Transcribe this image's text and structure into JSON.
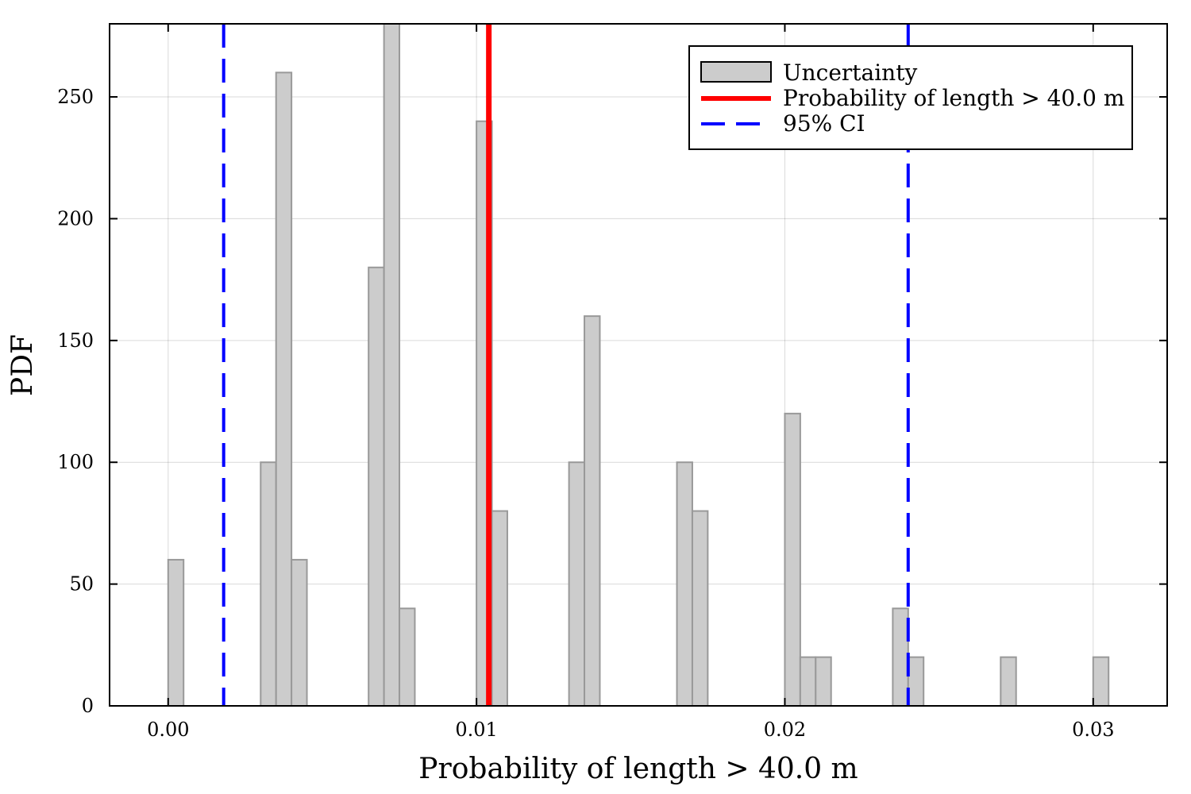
{
  "chart_data": {
    "type": "bar",
    "subtype": "histogram",
    "xlabel": "Probability of length > 40.0 m",
    "ylabel": "PDF",
    "xlim": [
      -0.0019,
      0.0324
    ],
    "ylim": [
      0,
      280
    ],
    "grid": true,
    "legend_position": "top-right",
    "bin_width": 0.0005,
    "x_ticks": [
      {
        "value": 0.0,
        "label": "0.00"
      },
      {
        "value": 0.01,
        "label": "0.01"
      },
      {
        "value": 0.02,
        "label": "0.02"
      },
      {
        "value": 0.03,
        "label": "0.03"
      }
    ],
    "y_ticks": [
      {
        "value": 0,
        "label": "0"
      },
      {
        "value": 50,
        "label": "50"
      },
      {
        "value": 100,
        "label": "100"
      },
      {
        "value": 150,
        "label": "150"
      },
      {
        "value": 200,
        "label": "200"
      },
      {
        "value": 250,
        "label": "250"
      }
    ],
    "bars": [
      {
        "x0": 0.0,
        "x1": 0.0005,
        "value": 60
      },
      {
        "x0": 0.003,
        "x1": 0.0035,
        "value": 100
      },
      {
        "x0": 0.0035,
        "x1": 0.004,
        "value": 260
      },
      {
        "x0": 0.004,
        "x1": 0.0045,
        "value": 60
      },
      {
        "x0": 0.0065,
        "x1": 0.007,
        "value": 180
      },
      {
        "x0": 0.007,
        "x1": 0.0075,
        "value": 280
      },
      {
        "x0": 0.0075,
        "x1": 0.008,
        "value": 40
      },
      {
        "x0": 0.01,
        "x1": 0.0105,
        "value": 240
      },
      {
        "x0": 0.0105,
        "x1": 0.011,
        "value": 80
      },
      {
        "x0": 0.013,
        "x1": 0.0135,
        "value": 100
      },
      {
        "x0": 0.0135,
        "x1": 0.014,
        "value": 160
      },
      {
        "x0": 0.0165,
        "x1": 0.017,
        "value": 100
      },
      {
        "x0": 0.017,
        "x1": 0.0175,
        "value": 80
      },
      {
        "x0": 0.02,
        "x1": 0.0205,
        "value": 120
      },
      {
        "x0": 0.0205,
        "x1": 0.021,
        "value": 20
      },
      {
        "x0": 0.021,
        "x1": 0.0215,
        "value": 20
      },
      {
        "x0": 0.0235,
        "x1": 0.024,
        "value": 40
      },
      {
        "x0": 0.024,
        "x1": 0.0245,
        "value": 20
      },
      {
        "x0": 0.027,
        "x1": 0.0275,
        "value": 20
      },
      {
        "x0": 0.03,
        "x1": 0.0305,
        "value": 20
      }
    ],
    "series": [
      {
        "name": "Uncertainty",
        "kind": "histogram",
        "color": "#cccccc"
      },
      {
        "name": "Probability of length > 40.0 m",
        "kind": "vline",
        "x": 0.0104,
        "color": "#ff0000"
      },
      {
        "name": "95% CI",
        "kind": "vline-dashed",
        "x": [
          0.0018,
          0.024
        ],
        "color": "#0000ff"
      }
    ]
  }
}
